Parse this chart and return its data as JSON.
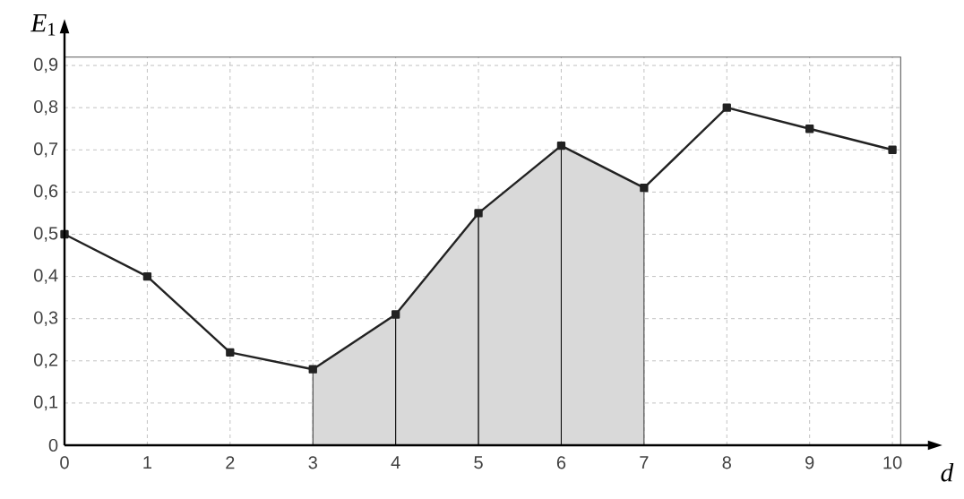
{
  "chart_data": {
    "type": "line",
    "xlabel": "d",
    "ylabel": "*E*$_{1}$",
    "x": [
      0,
      1,
      2,
      3,
      4,
      5,
      6,
      7,
      8,
      9,
      10
    ],
    "series": [
      {
        "type": "area",
        "color": "#d9d9d9",
        "x": [
          3,
          4,
          5,
          6,
          7
        ],
        "values": [
          0.18,
          0.31,
          0.55,
          0.71,
          0.61
        ]
      },
      {
        "type": "line",
        "color": "#222222",
        "values": [
          0.5,
          0.4,
          0.22,
          0.18,
          0.31,
          0.55,
          0.71,
          0.61,
          0.8,
          0.75,
          0.7
        ]
      }
    ],
    "xlim": [
      0,
      10.1
    ],
    "ylim": [
      0,
      0.92
    ],
    "xticks": [
      0,
      1,
      2,
      3,
      4,
      5,
      6,
      7,
      8,
      9,
      10
    ],
    "yticks": [
      {
        "value": 0,
        "label": "0"
      },
      {
        "value": 0.1,
        "label": "0,1"
      },
      {
        "value": 0.2,
        "label": "0,2"
      },
      {
        "value": 0.3,
        "label": "0,3"
      },
      {
        "value": 0.4,
        "label": "0,4"
      },
      {
        "value": 0.5,
        "label": "0,5"
      },
      {
        "value": 0.6,
        "label": "0,6"
      },
      {
        "value": 0.7,
        "label": "0,7"
      },
      {
        "value": 0.8,
        "label": "0,8"
      },
      {
        "value": 0.9,
        "label": "0,9"
      }
    ],
    "grid": true,
    "marker": "square",
    "line_style": "solid"
  }
}
